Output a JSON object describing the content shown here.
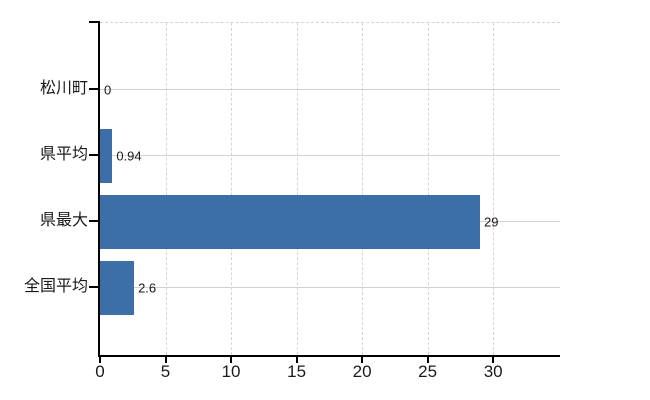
{
  "chart_data": {
    "type": "bar",
    "orientation": "horizontal",
    "title": "",
    "xlabel": "",
    "ylabel": "",
    "categories": [
      "松川町",
      "県平均",
      "県最大",
      "全国平均"
    ],
    "values": [
      0,
      0.94,
      29,
      2.6
    ],
    "value_labels": [
      "0",
      "0.94",
      "29",
      "2.6"
    ],
    "x_ticks": [
      0,
      5,
      10,
      15,
      20,
      25,
      30
    ],
    "x_tick_labels": [
      "0",
      "5",
      "10",
      "15",
      "20",
      "25",
      "30"
    ],
    "xlim": [
      0,
      35.1
    ],
    "grid": true,
    "legend": false,
    "colors": {
      "bar": "#3c6ea8",
      "axis": "#000000",
      "h_gridline": "#ccd4cc",
      "v_gridline": "#d6d6d6",
      "text": "#1a1a1a"
    }
  }
}
